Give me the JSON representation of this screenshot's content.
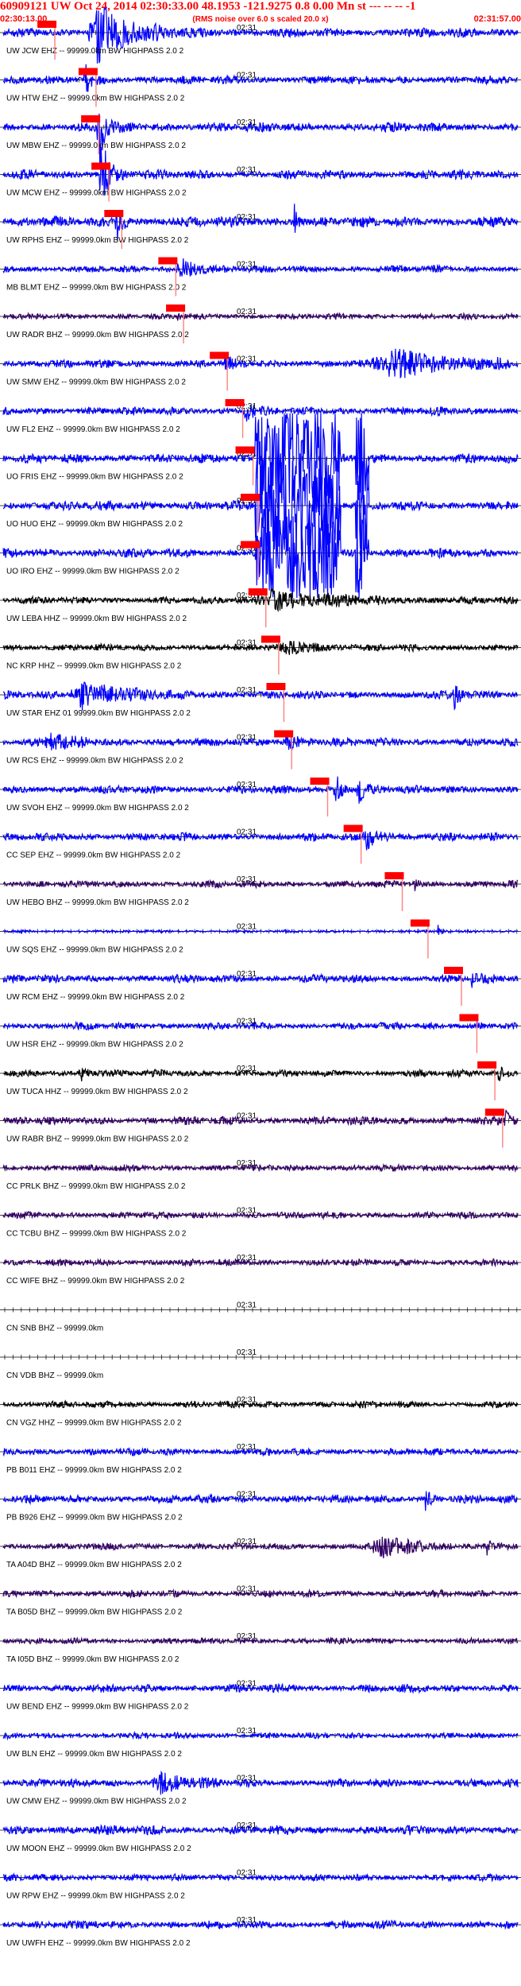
{
  "header": {
    "title": "60909121 UW Oct 24, 2014 02:30:33.00   48.1953 -121.9275  0.8 0.00 Mn st --- -- --  -1",
    "start_time": "02:30:13.00",
    "note": "(RMS noise over 6.0 s scaled 20.0 x)",
    "end_time": "02:31:57.00"
  },
  "colors": {
    "header": "#ff0000",
    "blue": "#0000ff",
    "black": "#000000",
    "purple": "#330066",
    "pick": "#ff0000",
    "pick_line": "#ff8080"
  },
  "chart_data": {
    "type": "line",
    "title": "60909121 UW Oct 24, 2014 02:30:33.00   48.1953 -121.9275  0.8 0.00 Mn st --- -- --  -1",
    "xlabel": "",
    "ylabel": "",
    "x_start": "02:30:13.00",
    "x_end": "02:31:57.00",
    "center_tick": "02:31",
    "traces": [
      {
        "label": "UW JCW EHZ -- 99999.0km BW  HIGHPASS  2.0  2",
        "tick": "02:31",
        "color": "blue",
        "amp": 0.4,
        "pick": 0.085,
        "events": [
          [
            0.18,
            2.5,
            0.05
          ]
        ]
      },
      {
        "label": "UW HTW EHZ -- 99999.0km BW  HIGHPASS  2.0  2",
        "tick": "02:31",
        "color": "blue",
        "amp": 0.35,
        "pick": 0.165,
        "events": [
          [
            0.16,
            1.5,
            0.01
          ]
        ]
      },
      {
        "label": "UW MBW EHZ -- 99999.0km BW  HIGHPASS  2.0  2",
        "tick": "02:31",
        "color": "blue",
        "amp": 0.4,
        "pick": 0.17,
        "events": [
          [
            0.185,
            3.5,
            0.01
          ]
        ]
      },
      {
        "label": "UW MCW EHZ -- 99999.0km BW  HIGHPASS  2.0  2",
        "tick": "02:31",
        "color": "blue",
        "amp": 0.4,
        "pick": 0.19,
        "events": [
          [
            0.19,
            3.5,
            0.012
          ]
        ]
      },
      {
        "label": "UW RPHS EHZ -- 99999.0km BW  HIGHPASS  2.0  2",
        "tick": "02:31",
        "color": "blue",
        "amp": 0.45,
        "pick": 0.215,
        "events": [
          [
            0.22,
            1.5,
            0.01
          ],
          [
            0.565,
            1.4,
            0.005
          ]
        ]
      },
      {
        "label": "MB BLMT EHZ -- 99999.0km BW  HIGHPASS  2.0  2",
        "tick": "02:31",
        "color": "blue",
        "amp": 0.3,
        "pick": 0.32,
        "events": [
          [
            0.34,
            0.9,
            0.03
          ]
        ]
      },
      {
        "label": "UW RADR BHZ -- 99999.0km BW  HIGHPASS  2.0  2",
        "tick": "02:31",
        "color": "purple",
        "amp": 0.25,
        "pick": 0.335,
        "events": [
          [
            0.34,
            0.6,
            0.005
          ]
        ]
      },
      {
        "label": "UW SMW EHZ -- 99999.0km BW  HIGHPASS  2.0  2",
        "tick": "02:31",
        "color": "blue",
        "amp": 0.35,
        "pick": 0.42,
        "events": [
          [
            0.43,
            0.6,
            0.01
          ],
          [
            0.75,
            1.0,
            0.12
          ]
        ]
      },
      {
        "label": "UW FL2 EHZ -- 99999.0km BW  HIGHPASS  2.0  2",
        "tick": "02:31",
        "color": "blue",
        "amp": 0.35,
        "pick": 0.45,
        "events": [
          [
            0.47,
            1.0,
            0.01
          ]
        ]
      },
      {
        "label": "UO FRIS EHZ -- 99999.0km BW  HIGHPASS  2.0  2",
        "tick": "02:31",
        "color": "blue",
        "amp": 0.4,
        "pick": 0.47,
        "events": [],
        "saturated": [
          [
            0.49,
            0.655
          ],
          [
            0.685,
            0.71
          ]
        ]
      },
      {
        "label": "UO HUO EHZ -- 99999.0km BW  HIGHPASS  2.0  2",
        "tick": "02:31",
        "color": "blue",
        "amp": 0.4,
        "pick": 0.48,
        "events": [],
        "saturated": [
          [
            0.49,
            0.655
          ],
          [
            0.685,
            0.71
          ]
        ]
      },
      {
        "label": "UO IRO EHZ -- 99999.0km BW  HIGHPASS  2.0  2",
        "tick": "02:31",
        "color": "blue",
        "amp": 0.4,
        "pick": 0.48,
        "events": [],
        "saturated": [
          [
            0.49,
            0.655
          ],
          [
            0.685,
            0.71
          ]
        ]
      },
      {
        "label": "UW LEBA HHZ -- 99999.0km BW  HIGHPASS  2.0  2",
        "tick": "02:31",
        "color": "black",
        "amp": 0.3,
        "pick": 0.495,
        "events": [
          [
            0.52,
            0.8,
            0.1
          ]
        ]
      },
      {
        "label": "NC KRP HHZ -- 99999.0km BW  HIGHPASS  2.0  2",
        "tick": "02:31",
        "color": "black",
        "amp": 0.3,
        "pick": 0.52,
        "events": [
          [
            0.55,
            0.5,
            0.05
          ]
        ]
      },
      {
        "label": "UW STAR EHZ 01 99999.0km BW  HIGHPASS  2.0  2",
        "tick": "02:31",
        "color": "blue",
        "amp": 0.35,
        "pick": 0.53,
        "events": [
          [
            0.15,
            1.2,
            0.06
          ],
          [
            0.875,
            1.2,
            0.01
          ]
        ]
      },
      {
        "label": "UW RCS EHZ -- 99999.0km BW  HIGHPASS  2.0  2",
        "tick": "02:31",
        "color": "blue",
        "amp": 0.35,
        "pick": 0.545,
        "events": [
          [
            0.09,
            0.8,
            0.03
          ],
          [
            0.55,
            0.8,
            0.02
          ]
        ]
      },
      {
        "label": "UW SVOH EHZ -- 99999.0km BW  HIGHPASS  2.0  2",
        "tick": "02:31",
        "color": "blue",
        "amp": 0.35,
        "pick": 0.615,
        "events": [
          [
            0.645,
            1.4,
            0.01
          ],
          [
            0.69,
            1.0,
            0.01
          ]
        ]
      },
      {
        "label": "CC SEP EHZ -- 99999.0km BW  HIGHPASS  2.0  2",
        "tick": "02:31",
        "color": "blue",
        "amp": 0.35,
        "pick": 0.68,
        "events": [
          [
            0.705,
            0.9,
            0.02
          ]
        ]
      },
      {
        "label": "UW HEBO BHZ -- 99999.0km BW  HIGHPASS  2.0  2",
        "tick": "02:31",
        "color": "purple",
        "amp": 0.3,
        "pick": 0.76,
        "events": [
          [
            0.8,
            0.5,
            0.005
          ]
        ]
      },
      {
        "label": "UW SQS EHZ -- 99999.0km BW  HIGHPASS  2.0  2",
        "tick": "02:31",
        "color": "blue",
        "amp": 0.12,
        "pick": 0.81,
        "events": [
          [
            0.845,
            0.5,
            0.005
          ]
        ]
      },
      {
        "label": "UW RCM EHZ -- 99999.0km BW  HIGHPASS  2.0  2",
        "tick": "02:31",
        "color": "blue",
        "amp": 0.35,
        "pick": 0.875,
        "events": [
          [
            0.91,
            0.6,
            0.01
          ]
        ]
      },
      {
        "label": "UW HSR EHZ -- 99999.0km BW  HIGHPASS  2.0  2",
        "tick": "02:31",
        "color": "blue",
        "amp": 0.3,
        "pick": 0.905,
        "events": [
          [
            0.92,
            0.5,
            0.005
          ]
        ]
      },
      {
        "label": "UW TUCA HHZ -- 99999.0km BW  HIGHPASS  2.0  2",
        "tick": "02:31",
        "color": "black",
        "amp": 0.3,
        "pick": 0.94,
        "events": [
          [
            0.15,
            0.7,
            0.01
          ],
          [
            0.96,
            0.7,
            0.01
          ]
        ]
      },
      {
        "label": "UW RABR BHZ -- 99999.0km BW  HIGHPASS  2.0  2",
        "tick": "02:31",
        "color": "purple",
        "amp": 0.35,
        "pick": 0.955,
        "events": [
          [
            0.975,
            0.8,
            0.01
          ]
        ]
      },
      {
        "label": "CC PRLK BHZ -- 99999.0km BW  HIGHPASS  2.0  2",
        "tick": "02:31",
        "color": "purple",
        "amp": 0.3,
        "pick": null,
        "events": []
      },
      {
        "label": "CC TCBU BHZ -- 99999.0km BW  HIGHPASS  2.0  2",
        "tick": "02:31",
        "color": "purple",
        "amp": 0.3,
        "pick": null,
        "events": []
      },
      {
        "label": "CC WIFE BHZ -- 99999.0km BW  HIGHPASS  2.0  2",
        "tick": "02:31",
        "color": "purple",
        "amp": 0.3,
        "pick": null,
        "events": []
      },
      {
        "label": "CN SNB BHZ -- 99999.0km",
        "tick": "02:31",
        "color": "none",
        "amp": 0,
        "pick": null,
        "events": []
      },
      {
        "label": "CN VDB BHZ -- 99999.0km",
        "tick": "02:31",
        "color": "none",
        "amp": 0,
        "pick": null,
        "events": []
      },
      {
        "label": "CN VGZ HHZ -- 99999.0km BW  HIGHPASS  2.0  2",
        "tick": "02:31",
        "color": "black",
        "amp": 0.3,
        "pick": null,
        "events": []
      },
      {
        "label": "PB B011 EHZ -- 99999.0km BW  HIGHPASS  2.0  2",
        "tick": "02:31",
        "color": "blue",
        "amp": 0.3,
        "pick": null,
        "events": []
      },
      {
        "label": "PB B926 EHZ -- 99999.0km BW  HIGHPASS  2.0  2",
        "tick": "02:31",
        "color": "blue",
        "amp": 0.35,
        "pick": null,
        "events": [
          [
            0.82,
            1.6,
            0.005
          ]
        ]
      },
      {
        "label": "TA A04D BHZ -- 99999.0km BW  HIGHPASS  2.0  2",
        "tick": "02:31",
        "color": "purple",
        "amp": 0.3,
        "pick": null,
        "events": [
          [
            0.73,
            0.9,
            0.05
          ],
          [
            0.94,
            0.6,
            0.005
          ]
        ]
      },
      {
        "label": "TA B05D BHZ -- 99999.0km BW  HIGHPASS  2.0  2",
        "tick": "02:31",
        "color": "purple",
        "amp": 0.3,
        "pick": null,
        "events": []
      },
      {
        "label": "TA I05D BHZ -- 99999.0km BW  HIGHPASS  2.0  2",
        "tick": "02:31",
        "color": "purple",
        "amp": 0.25,
        "pick": null,
        "events": []
      },
      {
        "label": "UW BEND EHZ -- 99999.0km BW  HIGHPASS  2.0  2",
        "tick": "02:31",
        "color": "blue",
        "amp": 0.35,
        "pick": null,
        "events": []
      },
      {
        "label": "UW BLN EHZ -- 99999.0km BW  HIGHPASS  2.0  2",
        "tick": "02:31",
        "color": "blue",
        "amp": 0.25,
        "pick": null,
        "events": []
      },
      {
        "label": "UW CMW EHZ -- 99999.0km BW  HIGHPASS  2.0  2",
        "tick": "02:31",
        "color": "blue",
        "amp": 0.35,
        "pick": null,
        "events": [
          [
            0.3,
            0.8,
            0.04
          ]
        ]
      },
      {
        "label": "UW MOON EHZ -- 99999.0km BW  HIGHPASS  2.0  2",
        "tick": "02:31",
        "color": "blue",
        "amp": 0.4,
        "pick": null,
        "events": []
      },
      {
        "label": "UW RPW EHZ -- 99999.0km BW  HIGHPASS  2.0  2",
        "tick": "02:31",
        "color": "blue",
        "amp": 0.3,
        "pick": null,
        "events": []
      },
      {
        "label": "UW UWFH EHZ -- 99999.0km BW  HIGHPASS  2.0  2",
        "tick": "02:31",
        "color": "blue",
        "amp": 0.35,
        "pick": null,
        "events": []
      }
    ]
  }
}
